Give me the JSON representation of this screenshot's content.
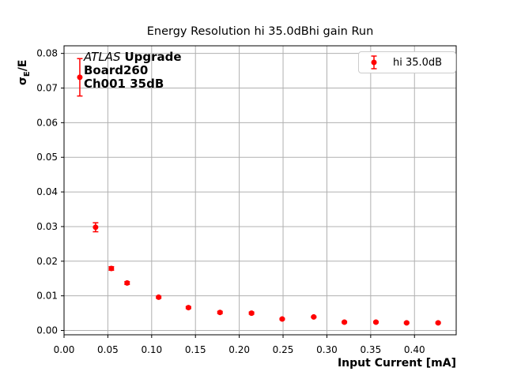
{
  "figure": {
    "ylabel_parts": {
      "sigma": "σ",
      "subscript": "E",
      "rest": "/E"
    },
    "annotation": {
      "line1_italic": "ATLAS",
      "line1_bold": "Upgrade",
      "line2": "Board260",
      "line3": "Ch001 35dB"
    },
    "legend": {
      "label": "hi 35.0dB"
    }
  },
  "chart_data": {
    "type": "scatter",
    "title": "Energy Resolution hi 35.0dBhi gain Run",
    "xlabel": "Input Current [mA]",
    "ylabel": "σE/E",
    "xlim": [
      0.0,
      0.4476
    ],
    "ylim": [
      -0.00125,
      0.0822
    ],
    "xticks": [
      0.0,
      0.05,
      0.1,
      0.15,
      0.2,
      0.25,
      0.3,
      0.35,
      0.4
    ],
    "yticks": [
      0.0,
      0.01,
      0.02,
      0.03,
      0.04,
      0.05,
      0.06,
      0.07,
      0.08
    ],
    "grid": true,
    "legend_position": "upper right",
    "series": [
      {
        "name": "hi 35.0dB",
        "color": "#ff0000",
        "marker": "circle",
        "points": [
          {
            "x": 0.018,
            "y": 0.0731,
            "yerr": 0.0054
          },
          {
            "x": 0.036,
            "y": 0.0298,
            "yerr": 0.0013
          },
          {
            "x": 0.054,
            "y": 0.0179,
            "yerr": 0.0005
          },
          {
            "x": 0.072,
            "y": 0.0137,
            "yerr": 0.0004
          },
          {
            "x": 0.108,
            "y": 0.0096,
            "yerr": 0.0003
          },
          {
            "x": 0.142,
            "y": 0.0066,
            "yerr": 0.0003
          },
          {
            "x": 0.178,
            "y": 0.0052,
            "yerr": 0.0003
          },
          {
            "x": 0.214,
            "y": 0.005,
            "yerr": 0.0003
          },
          {
            "x": 0.249,
            "y": 0.0033,
            "yerr": 0.0002
          },
          {
            "x": 0.285,
            "y": 0.0039,
            "yerr": 0.0002
          },
          {
            "x": 0.32,
            "y": 0.0024,
            "yerr": 0.0002
          },
          {
            "x": 0.356,
            "y": 0.0024,
            "yerr": 0.0002
          },
          {
            "x": 0.391,
            "y": 0.0022,
            "yerr": 0.0002
          },
          {
            "x": 0.427,
            "y": 0.0022,
            "yerr": 0.0002
          }
        ]
      }
    ]
  },
  "colors": {
    "marker": "#ff0000",
    "grid": "#b0b0b0",
    "frame": "#000000",
    "text": "#000000",
    "legend_border": "#cccccc",
    "background": "#ffffff"
  }
}
